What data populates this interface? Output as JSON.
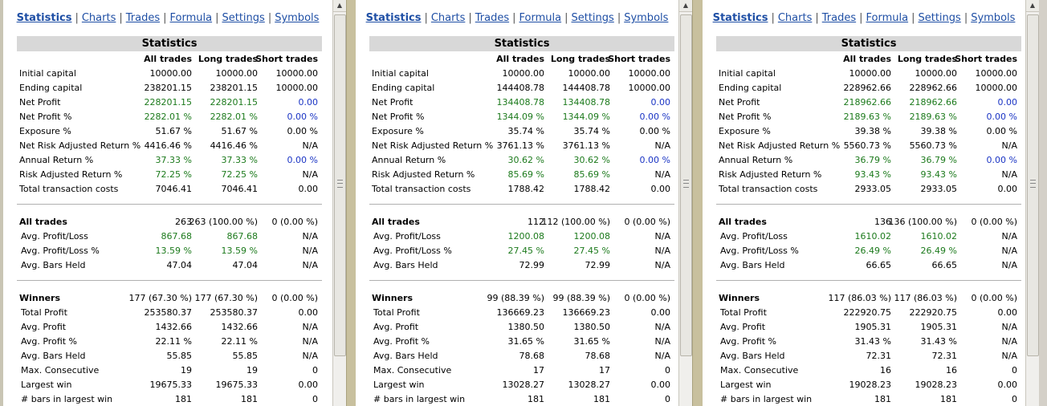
{
  "nav": [
    "Statistics",
    "Charts",
    "Trades",
    "Formula",
    "Settings",
    "Symbols"
  ],
  "title": "Statistics",
  "columns": [
    "All trades",
    "Long trades",
    "Short trades"
  ],
  "colors": {
    "positive": "#1c7a1c",
    "zero": "#1a34c4",
    "header_bg": "#d8d8d8"
  },
  "panels": [
    {
      "rows": [
        {
          "label": "Initial capital",
          "values": [
            "10000.00",
            "10000.00",
            "10000.00"
          ]
        },
        {
          "label": "Ending capital",
          "values": [
            "238201.15",
            "238201.15",
            "10000.00"
          ]
        },
        {
          "label": "Net Profit",
          "values": [
            "228201.15",
            "228201.15",
            "0.00"
          ]
        },
        {
          "label": "Net Profit %",
          "values": [
            "2282.01 %",
            "2282.01 %",
            "0.00 %"
          ]
        },
        {
          "label": "Exposure %",
          "values": [
            "51.67 %",
            "51.67 %",
            "0.00 %"
          ]
        },
        {
          "label": "Net Risk Adjusted Return %",
          "values": [
            "4416.46 %",
            "4416.46 %",
            "N/A"
          ]
        },
        {
          "label": "Annual Return %",
          "values": [
            "37.33 %",
            "37.33 %",
            "0.00 %"
          ]
        },
        {
          "label": "Risk Adjusted Return %",
          "values": [
            "72.25 %",
            "72.25 %",
            "N/A"
          ]
        },
        {
          "label": "Total transaction costs",
          "values": [
            "7046.41",
            "7046.41",
            "0.00"
          ]
        }
      ],
      "all_trades": {
        "label": "All trades",
        "values": [
          "263",
          "263 (100.00 %)",
          "0 (0.00 %)"
        ]
      },
      "all_rows": [
        {
          "label": "Avg. Profit/Loss",
          "values": [
            "867.68",
            "867.68",
            "N/A"
          ]
        },
        {
          "label": "Avg. Profit/Loss %",
          "values": [
            "13.59 %",
            "13.59 %",
            "N/A"
          ]
        },
        {
          "label": "Avg. Bars Held",
          "values": [
            "47.04",
            "47.04",
            "N/A"
          ]
        }
      ],
      "winners": {
        "label": "Winners",
        "values": [
          "177 (67.30 %)",
          "177 (67.30 %)",
          "0 (0.00 %)"
        ]
      },
      "win_rows": [
        {
          "label": "Total Profit",
          "values": [
            "253580.37",
            "253580.37",
            "0.00"
          ]
        },
        {
          "label": "Avg. Profit",
          "values": [
            "1432.66",
            "1432.66",
            "N/A"
          ]
        },
        {
          "label": "Avg. Profit %",
          "values": [
            "22.11 %",
            "22.11 %",
            "N/A"
          ]
        },
        {
          "label": "Avg. Bars Held",
          "values": [
            "55.85",
            "55.85",
            "N/A"
          ]
        },
        {
          "label": "Max. Consecutive",
          "values": [
            "19",
            "19",
            "0"
          ]
        },
        {
          "label": "Largest win",
          "values": [
            "19675.33",
            "19675.33",
            "0.00"
          ]
        },
        {
          "label": "# bars in largest win",
          "values": [
            "181",
            "181",
            "0"
          ]
        }
      ]
    },
    {
      "rows": [
        {
          "label": "Initial capital",
          "values": [
            "10000.00",
            "10000.00",
            "10000.00"
          ]
        },
        {
          "label": "Ending capital",
          "values": [
            "144408.78",
            "144408.78",
            "10000.00"
          ]
        },
        {
          "label": "Net Profit",
          "values": [
            "134408.78",
            "134408.78",
            "0.00"
          ]
        },
        {
          "label": "Net Profit %",
          "values": [
            "1344.09 %",
            "1344.09 %",
            "0.00 %"
          ]
        },
        {
          "label": "Exposure %",
          "values": [
            "35.74 %",
            "35.74 %",
            "0.00 %"
          ]
        },
        {
          "label": "Net Risk Adjusted Return %",
          "values": [
            "3761.13 %",
            "3761.13 %",
            "N/A"
          ]
        },
        {
          "label": "Annual Return %",
          "values": [
            "30.62 %",
            "30.62 %",
            "0.00 %"
          ]
        },
        {
          "label": "Risk Adjusted Return %",
          "values": [
            "85.69 %",
            "85.69 %",
            "N/A"
          ]
        },
        {
          "label": "Total transaction costs",
          "values": [
            "1788.42",
            "1788.42",
            "0.00"
          ]
        }
      ],
      "all_trades": {
        "label": "All trades",
        "values": [
          "112",
          "112 (100.00 %)",
          "0 (0.00 %)"
        ]
      },
      "all_rows": [
        {
          "label": "Avg. Profit/Loss",
          "values": [
            "1200.08",
            "1200.08",
            "N/A"
          ]
        },
        {
          "label": "Avg. Profit/Loss %",
          "values": [
            "27.45 %",
            "27.45 %",
            "N/A"
          ]
        },
        {
          "label": "Avg. Bars Held",
          "values": [
            "72.99",
            "72.99",
            "N/A"
          ]
        }
      ],
      "winners": {
        "label": "Winners",
        "values": [
          "99 (88.39 %)",
          "99 (88.39 %)",
          "0 (0.00 %)"
        ]
      },
      "win_rows": [
        {
          "label": "Total Profit",
          "values": [
            "136669.23",
            "136669.23",
            "0.00"
          ]
        },
        {
          "label": "Avg. Profit",
          "values": [
            "1380.50",
            "1380.50",
            "N/A"
          ]
        },
        {
          "label": "Avg. Profit %",
          "values": [
            "31.65 %",
            "31.65 %",
            "N/A"
          ]
        },
        {
          "label": "Avg. Bars Held",
          "values": [
            "78.68",
            "78.68",
            "N/A"
          ]
        },
        {
          "label": "Max. Consecutive",
          "values": [
            "17",
            "17",
            "0"
          ]
        },
        {
          "label": "Largest win",
          "values": [
            "13028.27",
            "13028.27",
            "0.00"
          ]
        },
        {
          "label": "# bars in largest win",
          "values": [
            "181",
            "181",
            "0"
          ]
        }
      ]
    },
    {
      "rows": [
        {
          "label": "Initial capital",
          "values": [
            "10000.00",
            "10000.00",
            "10000.00"
          ]
        },
        {
          "label": "Ending capital",
          "values": [
            "228962.66",
            "228962.66",
            "10000.00"
          ]
        },
        {
          "label": "Net Profit",
          "values": [
            "218962.66",
            "218962.66",
            "0.00"
          ]
        },
        {
          "label": "Net Profit %",
          "values": [
            "2189.63 %",
            "2189.63 %",
            "0.00 %"
          ]
        },
        {
          "label": "Exposure %",
          "values": [
            "39.38 %",
            "39.38 %",
            "0.00 %"
          ]
        },
        {
          "label": "Net Risk Adjusted Return %",
          "values": [
            "5560.73 %",
            "5560.73 %",
            "N/A"
          ]
        },
        {
          "label": "Annual Return %",
          "values": [
            "36.79 %",
            "36.79 %",
            "0.00 %"
          ]
        },
        {
          "label": "Risk Adjusted Return %",
          "values": [
            "93.43 %",
            "93.43 %",
            "N/A"
          ]
        },
        {
          "label": "Total transaction costs",
          "values": [
            "2933.05",
            "2933.05",
            "0.00"
          ]
        }
      ],
      "all_trades": {
        "label": "All trades",
        "values": [
          "136",
          "136 (100.00 %)",
          "0 (0.00 %)"
        ]
      },
      "all_rows": [
        {
          "label": "Avg. Profit/Loss",
          "values": [
            "1610.02",
            "1610.02",
            "N/A"
          ]
        },
        {
          "label": "Avg. Profit/Loss %",
          "values": [
            "26.49 %",
            "26.49 %",
            "N/A"
          ]
        },
        {
          "label": "Avg. Bars Held",
          "values": [
            "66.65",
            "66.65",
            "N/A"
          ]
        }
      ],
      "winners": {
        "label": "Winners",
        "values": [
          "117 (86.03 %)",
          "117 (86.03 %)",
          "0 (0.00 %)"
        ]
      },
      "win_rows": [
        {
          "label": "Total Profit",
          "values": [
            "222920.75",
            "222920.75",
            "0.00"
          ]
        },
        {
          "label": "Avg. Profit",
          "values": [
            "1905.31",
            "1905.31",
            "N/A"
          ]
        },
        {
          "label": "Avg. Profit %",
          "values": [
            "31.43 %",
            "31.43 %",
            "N/A"
          ]
        },
        {
          "label": "Avg. Bars Held",
          "values": [
            "72.31",
            "72.31",
            "N/A"
          ]
        },
        {
          "label": "Max. Consecutive",
          "values": [
            "16",
            "16",
            "0"
          ]
        },
        {
          "label": "Largest win",
          "values": [
            "19028.23",
            "19028.23",
            "0.00"
          ]
        },
        {
          "label": "# bars in largest win",
          "values": [
            "181",
            "181",
            "0"
          ]
        }
      ]
    }
  ],
  "color_rules": {
    "green_rows": [
      "Net Profit",
      "Net Profit %",
      "Annual Return %",
      "Risk Adjusted Return %",
      "Avg. Profit/Loss",
      "Avg. Profit/Loss %"
    ],
    "blue_zero_rows": [
      "Net Profit",
      "Net Profit %",
      "Annual Return %"
    ]
  }
}
